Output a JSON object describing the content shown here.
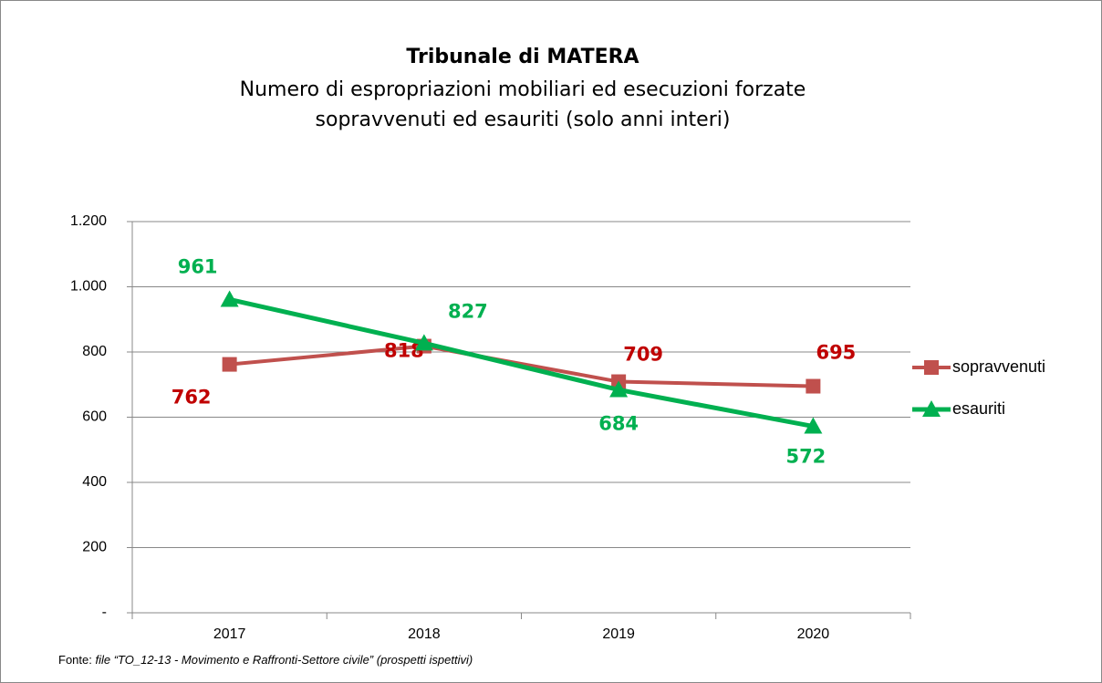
{
  "chart_data": {
    "type": "line",
    "title": "Tribunale di MATERA",
    "subtitle": [
      "Numero di espropriazioni mobiliari ed esecuzioni forzate",
      "sopravvenuti ed esauriti (solo anni interi)"
    ],
    "categories": [
      "2017",
      "2018",
      "2019",
      "2020"
    ],
    "series": [
      {
        "name": "sopravvenuti",
        "color": "#c0504d",
        "label_color": "#c00000",
        "marker": "square",
        "values": [
          762,
          818,
          709,
          695
        ]
      },
      {
        "name": "esauriti",
        "color": "#00b050",
        "label_color": "#00b050",
        "marker": "triangle",
        "values": [
          961,
          827,
          684,
          572
        ]
      }
    ],
    "ylim": [
      0,
      1200
    ],
    "yticks": [
      {
        "value": 0,
        "label": "-"
      },
      200,
      400,
      600,
      800,
      {
        "value": 1000,
        "label": "1.000"
      },
      {
        "value": 1200,
        "label": "1.200"
      }
    ],
    "grid": true,
    "legend": "right",
    "source": {
      "prefix": "Fonte:",
      "text": "file “TO_12-13 - Movimento e Raffronti-Settore civile” (prospetti ispettivi)"
    }
  }
}
